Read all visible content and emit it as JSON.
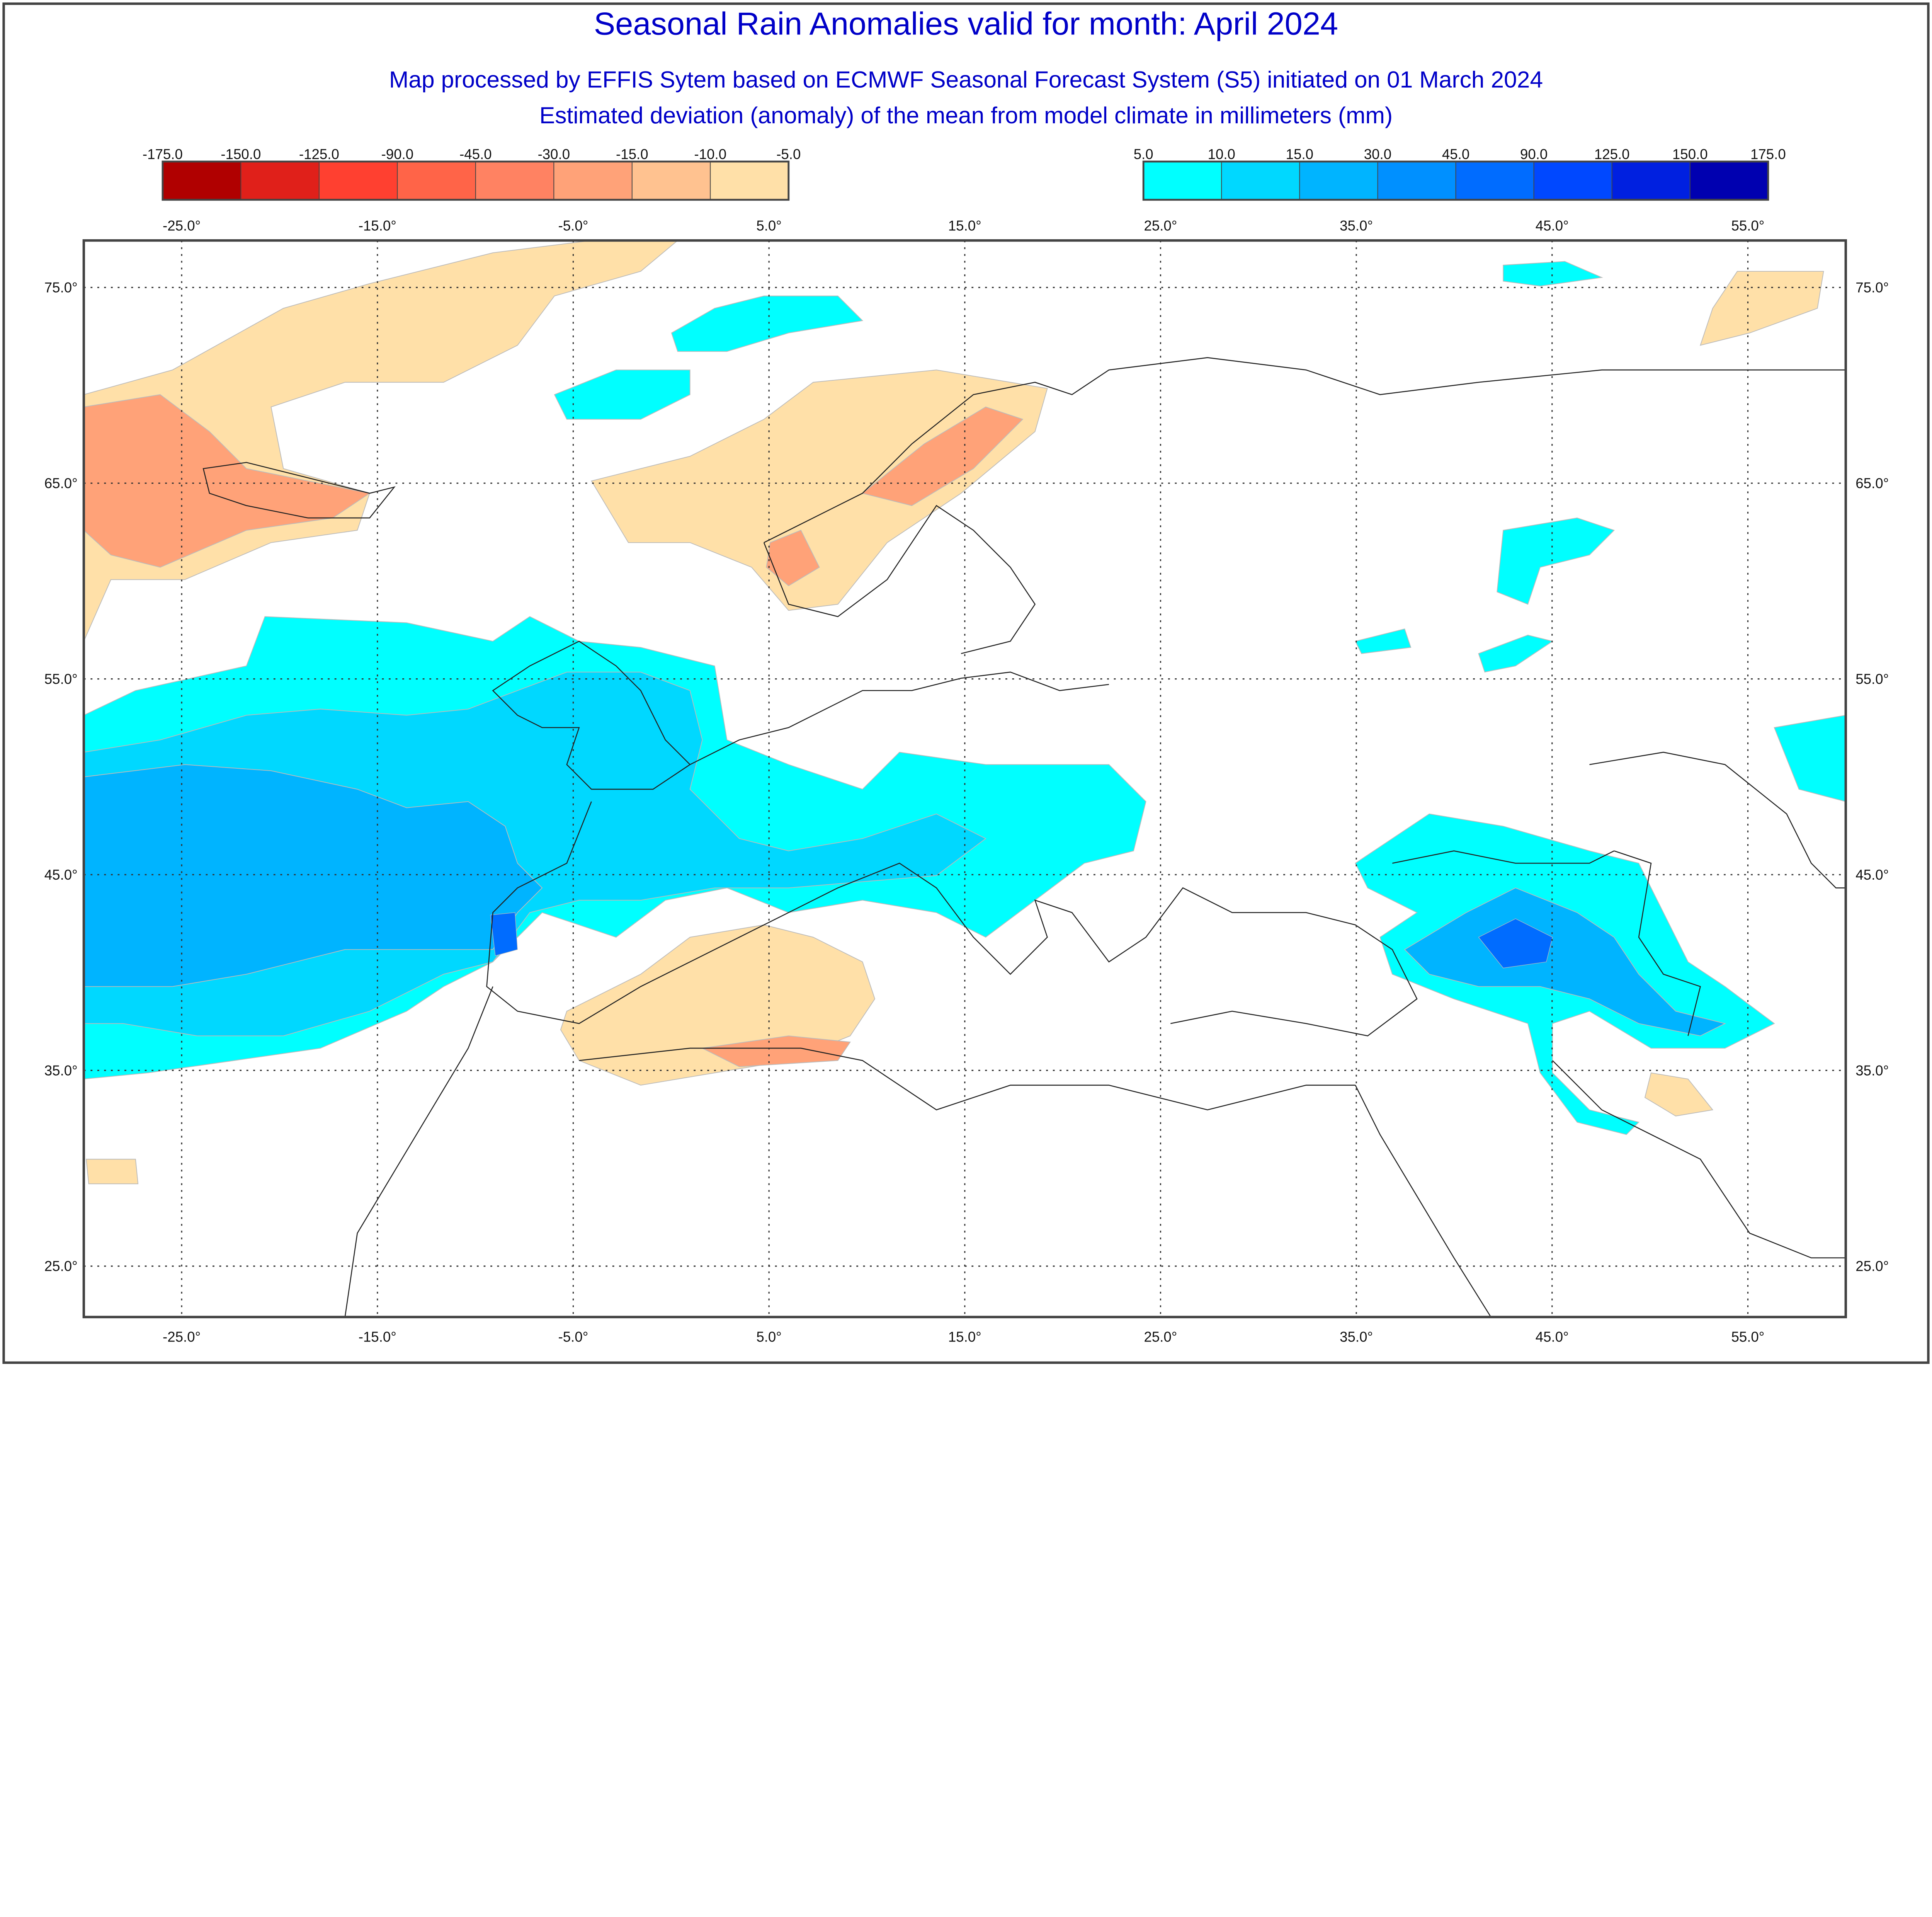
{
  "header": {
    "title": "Seasonal Rain Anomalies valid for month: April 2024",
    "subtitle_1": "Map processed by EFFIS Sytem based on ECMWF Seasonal Forecast System (S5) initiated on 01 March 2024",
    "subtitle_2": "Estimated deviation (anomaly) of the mean from model climate in millimeters (mm)"
  },
  "legend_negative": {
    "labels": [
      "-175.0",
      "-150.0",
      "-125.0",
      "-90.0",
      "-45.0",
      "-30.0",
      "-15.0",
      "-10.0",
      "-5.0"
    ],
    "colors": [
      "#b00000",
      "#e0201a",
      "#ff4030",
      "#ff6448",
      "#ff8262",
      "#ffa278",
      "#ffc290",
      "#ffe0a8"
    ]
  },
  "legend_positive": {
    "labels": [
      "5.0",
      "10.0",
      "15.0",
      "30.0",
      "45.0",
      "90.0",
      "125.0",
      "150.0",
      "175.0"
    ],
    "colors": [
      "#00ffff",
      "#00d8ff",
      "#00b4ff",
      "#0090ff",
      "#006cff",
      "#0048ff",
      "#0020e0",
      "#0000b0"
    ]
  },
  "map": {
    "lon_ticks": [
      "-25.0°",
      "-15.0°",
      "-5.0°",
      "5.0°",
      "15.0°",
      "25.0°",
      "35.0°",
      "45.0°",
      "55.0°"
    ],
    "lat_ticks": [
      "75.0°",
      "65.0°",
      "55.0°",
      "45.0°",
      "35.0°",
      "25.0°"
    ],
    "lon_values": [
      -25,
      -15,
      -5,
      5,
      15,
      25,
      35,
      45,
      55
    ],
    "lat_values": [
      75,
      65,
      55,
      45,
      35,
      25
    ],
    "extent": {
      "lon": [
        -30,
        60
      ],
      "lat": [
        22.4,
        77.4
      ]
    }
  }
}
